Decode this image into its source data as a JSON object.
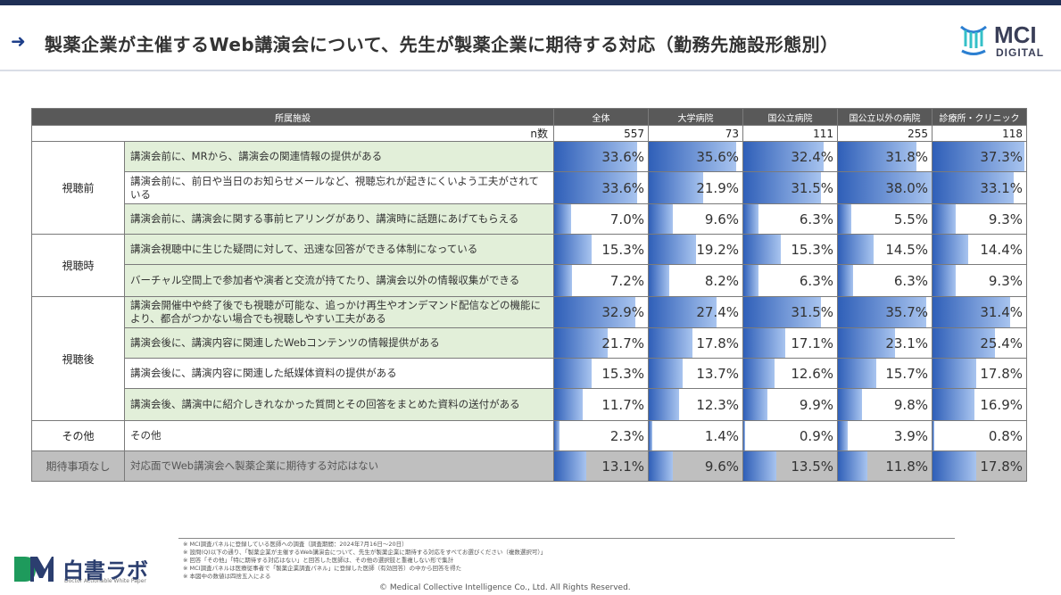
{
  "header": {
    "title": "製薬企業が主催するWeb講演会について、先生が製薬企業に期待する対応（勤務先施設形態別）",
    "logo_text": "MCI",
    "logo_sub": "DIGITAL",
    "accent": "#1f2f55"
  },
  "table": {
    "header_label": "所属施設",
    "n_label": "n数",
    "columns": [
      "全体",
      "大学病院",
      "国公立病院",
      "国公立以外の病院",
      "診療所・クリニック"
    ],
    "n_values": [
      557,
      73,
      111,
      255,
      118
    ],
    "rows": [
      {
        "group": "視聴前",
        "label": "講演会前に、MRから、講演会の関連情報の提供がある",
        "values": [
          "33.6%",
          "35.6%",
          "32.4%",
          "31.8%",
          "37.3%"
        ],
        "pct": [
          33.6,
          35.6,
          32.4,
          31.8,
          37.3
        ]
      },
      {
        "group": "",
        "label": "講演会前に、前日や当日のお知らせメールなど、視聴忘れが起きにくいよう工夫がされている",
        "values": [
          "33.6%",
          "21.9%",
          "31.5%",
          "38.0%",
          "33.1%"
        ],
        "pct": [
          33.6,
          21.9,
          31.5,
          38.0,
          33.1
        ]
      },
      {
        "group": "",
        "label": "講演会前に、講演会に関する事前ヒアリングがあり、講演時に話題にあげてもらえる",
        "values": [
          "7.0%",
          "9.6%",
          "6.3%",
          "5.5%",
          "9.3%"
        ],
        "pct": [
          7.0,
          9.6,
          6.3,
          5.5,
          9.3
        ]
      },
      {
        "group": "視聴時",
        "label": "講演会視聴中に生じた疑問に対して、迅速な回答ができる体制になっている",
        "values": [
          "15.3%",
          "19.2%",
          "15.3%",
          "14.5%",
          "14.4%"
        ],
        "pct": [
          15.3,
          19.2,
          15.3,
          14.5,
          14.4
        ]
      },
      {
        "group": "",
        "label": "バーチャル空間上で参加者や演者と交流が持てたり、講演会以外の情報収集ができる",
        "values": [
          "7.2%",
          "8.2%",
          "6.3%",
          "6.3%",
          "9.3%"
        ],
        "pct": [
          7.2,
          8.2,
          6.3,
          6.3,
          9.3
        ]
      },
      {
        "group": "視聴後",
        "label": "講演会開催中や終了後でも視聴が可能な、追っかけ再生やオンデマンド配信などの機能により、都合がつかない場合でも視聴しやすい工夫がある",
        "values": [
          "32.9%",
          "27.4%",
          "31.5%",
          "35.7%",
          "31.4%"
        ],
        "pct": [
          32.9,
          27.4,
          31.5,
          35.7,
          31.4
        ]
      },
      {
        "group": "",
        "label": "講演会後に、講演内容に関連したWebコンテンツの情報提供がある",
        "values": [
          "21.7%",
          "17.8%",
          "17.1%",
          "23.1%",
          "25.4%"
        ],
        "pct": [
          21.7,
          17.8,
          17.1,
          23.1,
          25.4
        ]
      },
      {
        "group": "",
        "label": "講演会後に、講演内容に関連した紙媒体資料の提供がある",
        "values": [
          "15.3%",
          "13.7%",
          "12.6%",
          "15.7%",
          "17.8%"
        ],
        "pct": [
          15.3,
          13.7,
          12.6,
          15.7,
          17.8
        ]
      },
      {
        "group": "",
        "label": "講演会後、講演中に紹介しきれなかった質問とその回答をまとめた資料の送付がある",
        "values": [
          "11.7%",
          "12.3%",
          "9.9%",
          "9.8%",
          "16.9%"
        ],
        "pct": [
          11.7,
          12.3,
          9.9,
          9.8,
          16.9
        ]
      },
      {
        "group": "その他",
        "label": "その他",
        "values": [
          "2.3%",
          "1.4%",
          "0.9%",
          "3.9%",
          "0.8%"
        ],
        "pct": [
          2.3,
          1.4,
          0.9,
          3.9,
          0.8
        ]
      },
      {
        "group": "期待事項なし",
        "label": "対応面でWeb講演会へ製薬企業に期待する対応はない",
        "values": [
          "13.1%",
          "9.6%",
          "13.5%",
          "11.8%",
          "17.8%"
        ],
        "pct": [
          13.1,
          9.6,
          13.5,
          11.8,
          17.8
        ]
      }
    ]
  },
  "footer": {
    "logo_text": "白書ラボ",
    "logo_sub": "Doctor Actionable White Paper",
    "notes": [
      "※ MCI調査パネルに登録している医師への調査（調査期間：2024年7月16日～20日）",
      "※ 設問(Q)以下の通り、「製薬企業が主催するWeb講演会について、先生が製薬企業に期待する対応をすべてお選びください（複数選択可）」",
      "※ 回答「その他」「特に期待する対応はない」と回答した医師は、その他の選択肢と重複しない形で集計",
      "※ MCI調査パネルは医療従事者で「製薬企業調査パネル」に登録した医師（有効回答）の中から回答を得た",
      "※ 本図中の数値は四捨五入による"
    ],
    "copyright": "©  Medical Collective Intelligence Co., Ltd.  All Rights Reserved."
  }
}
